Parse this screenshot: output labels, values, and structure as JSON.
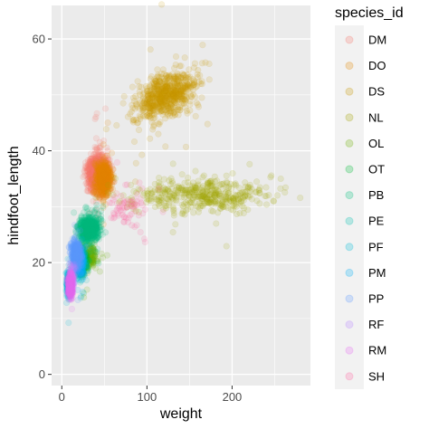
{
  "chart_data": {
    "type": "scatter",
    "xlabel": "weight",
    "ylabel": "hindfoot_length",
    "xlim": [
      -12,
      292
    ],
    "ylim": [
      -2,
      66
    ],
    "x_ticks": [
      0,
      100,
      200
    ],
    "y_ticks": [
      0,
      20,
      40,
      60
    ],
    "x_tick_labels": [
      "0",
      "100",
      "200"
    ],
    "y_tick_labels": [
      "0",
      "20",
      "40",
      "60"
    ],
    "grid": true,
    "point_alpha": 0.15,
    "legend": {
      "title": "species_id",
      "placement": "right"
    },
    "series": [
      {
        "name": "DM",
        "color": "#F8766D",
        "cluster": {
          "x_mean": 42,
          "x_sd": 6,
          "y_mean": 36,
          "y_sd": 1.6,
          "x_min": 5,
          "x_max": 65
        }
      },
      {
        "name": "DO",
        "color": "#E58700",
        "cluster": {
          "x_mean": 49,
          "x_sd": 5,
          "y_mean": 35,
          "y_sd": 1.5
        }
      },
      {
        "name": "DS",
        "color": "#C99800",
        "cluster": {
          "x_mean": 122,
          "x_sd": 18,
          "y_mean": 50,
          "y_sd": 2,
          "slope": 0.06,
          "x_min": 40,
          "x_max": 190
        }
      },
      {
        "name": "NL",
        "color": "#A3A500",
        "cluster": {
          "x_mean": 165,
          "x_sd": 40,
          "y_mean": 32,
          "y_sd": 1.5,
          "x_min": 30,
          "x_max": 280
        }
      },
      {
        "name": "OL",
        "color": "#6BB100",
        "cluster": {
          "x_mean": 32,
          "x_sd": 6,
          "y_mean": 21,
          "y_sd": 1.2
        }
      },
      {
        "name": "OT",
        "color": "#00BA38",
        "cluster": {
          "x_mean": 24,
          "x_sd": 3,
          "y_mean": 20,
          "y_sd": 1
        }
      },
      {
        "name": "PB",
        "color": "#00BF7D",
        "cluster": {
          "x_mean": 32,
          "x_sd": 6,
          "y_mean": 26,
          "y_sd": 1.2
        }
      },
      {
        "name": "PE",
        "color": "#00C0AF",
        "cluster": {
          "x_mean": 21,
          "x_sd": 2.5,
          "y_mean": 20,
          "y_sd": 1.2
        }
      },
      {
        "name": "PF",
        "color": "#00BCD8",
        "cluster": {
          "x_mean": 8,
          "x_sd": 1.2,
          "y_mean": 16,
          "y_sd": 1.2
        }
      },
      {
        "name": "PM",
        "color": "#00B0F6",
        "cluster": {
          "x_mean": 21,
          "x_sd": 3,
          "y_mean": 20,
          "y_sd": 1.2
        }
      },
      {
        "name": "PP",
        "color": "#619CFF",
        "cluster": {
          "x_mean": 17,
          "x_sd": 3,
          "y_mean": 21.5,
          "y_sd": 1.2
        }
      },
      {
        "name": "RF",
        "color": "#B983FF",
        "cluster": {
          "x_mean": 13,
          "x_sd": 2,
          "y_mean": 17.5,
          "y_sd": 1.2
        }
      },
      {
        "name": "RM",
        "color": "#E76BF3",
        "cluster": {
          "x_mean": 10,
          "x_sd": 1.6,
          "y_mean": 16,
          "y_sd": 1.2
        }
      },
      {
        "name": "SH",
        "color": "#FF67A4",
        "cluster": {
          "x_mean": 75,
          "x_sd": 12,
          "y_mean": 29,
          "y_sd": 2
        }
      }
    ]
  }
}
